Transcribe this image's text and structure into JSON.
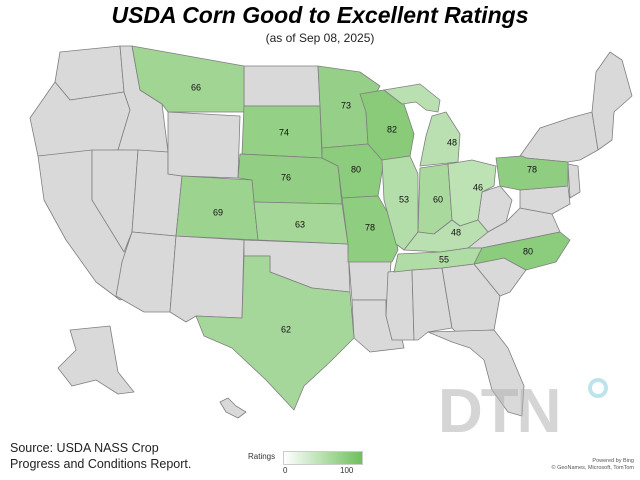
{
  "title": "USDA Corn Good to Excellent Ratings",
  "subtitle": "(as of Sep 08, 2025)",
  "source": [
    "Source: USDA NASS Crop",
    "Progress and Conditions Report."
  ],
  "legend": {
    "title": "Ratings",
    "min": "0",
    "max": "100",
    "color_low": "#ffffff",
    "color_high": "#6fbf5c"
  },
  "attribution": {
    "powered": "Powered by Bing",
    "line": "© GeoNames, Microsoft, TomTom"
  },
  "logo_text": "DTN",
  "colors": {
    "no_data": "#d9d9d9",
    "border": "#7f7f7f"
  },
  "states": [
    {
      "name": "Montana",
      "rating": 66
    },
    {
      "name": "Minnesota",
      "rating": 73
    },
    {
      "name": "Wisconsin",
      "rating": 82
    },
    {
      "name": "South Dakota",
      "rating": 74
    },
    {
      "name": "Michigan",
      "rating": 48
    },
    {
      "name": "Nebraska",
      "rating": 76
    },
    {
      "name": "Iowa",
      "rating": 80
    },
    {
      "name": "Pennsylvania",
      "rating": 78
    },
    {
      "name": "Colorado",
      "rating": 69
    },
    {
      "name": "Illinois",
      "rating": 53
    },
    {
      "name": "Indiana",
      "rating": 60
    },
    {
      "name": "Ohio",
      "rating": 46
    },
    {
      "name": "Kansas",
      "rating": 63
    },
    {
      "name": "Missouri",
      "rating": 78
    },
    {
      "name": "Kentucky",
      "rating": 48
    },
    {
      "name": "North Carolina",
      "rating": 80
    },
    {
      "name": "Tennessee",
      "rating": 55
    },
    {
      "name": "Texas",
      "rating": 62
    }
  ]
}
